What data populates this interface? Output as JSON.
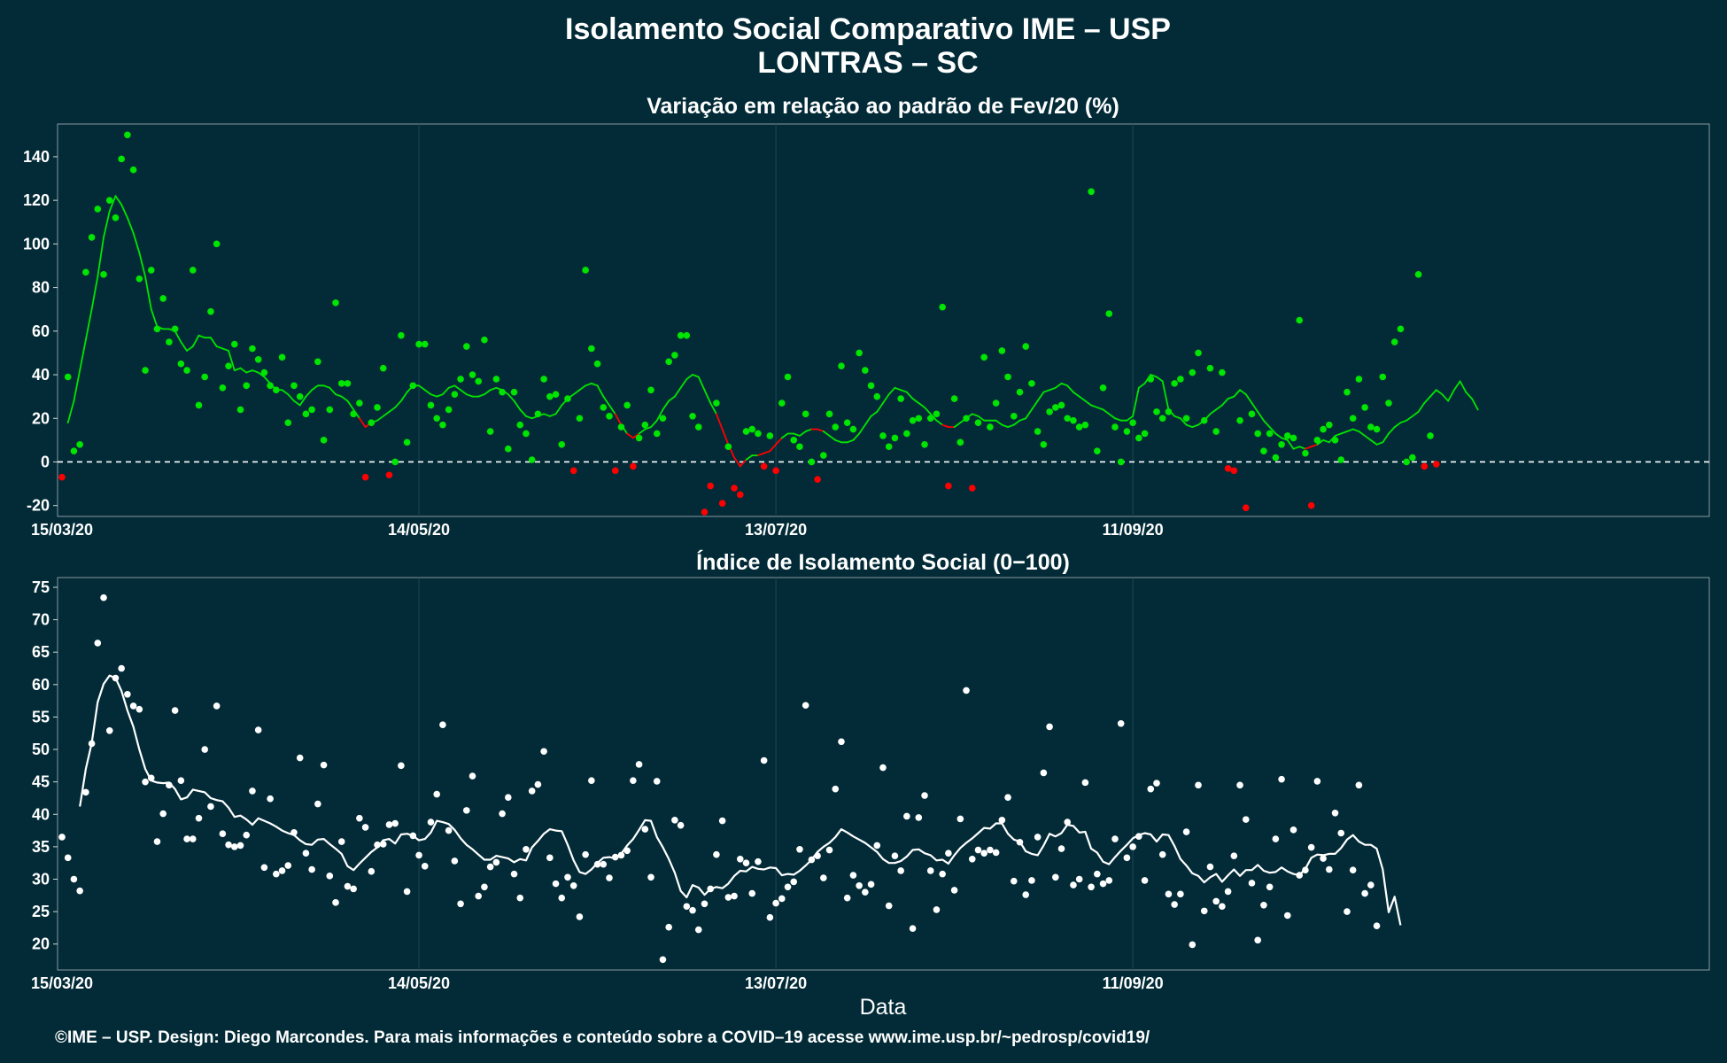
{
  "title_line1": "Isolamento Social Comparativo IME – USP",
  "title_line2": "LONTRAS – SC",
  "caption": "©IME – USP. Design: Diego Marcondes. Para mais informações e conteúdo sobre a COVID–19 acesse www.ime.usp.br/~pedrosp/covid19/",
  "colors": {
    "background": "#022b37",
    "positive": "#00e500",
    "negative": "#ff0000",
    "index": "#ffffff",
    "axis_text": "#ffffff"
  },
  "chart_data": [
    {
      "type": "scatter",
      "title": "Variação em relação ao padrão de Fev/20 (%)",
      "xlabel": "",
      "ylabel": "",
      "x_start": "15/03/20",
      "x_end": "16/12/20",
      "xticks": [
        "15/03/20",
        "14/05/20",
        "13/07/20",
        "11/09/20"
      ],
      "yticks": [
        -20,
        0,
        20,
        40,
        60,
        80,
        100,
        120,
        140
      ],
      "ylim": [
        -25,
        155
      ],
      "reference_line": 0,
      "grid": true,
      "series": [
        {
          "role": "daily points (green ≥ 0, red < 0)",
          "values": [
            -7,
            39,
            5,
            8,
            87,
            103,
            116,
            86,
            120,
            112,
            139,
            150,
            134,
            84,
            42,
            88,
            61,
            75,
            55,
            61,
            45,
            42,
            88,
            26,
            39,
            69,
            100,
            34,
            44,
            54,
            24,
            35,
            52,
            47,
            41,
            35,
            33,
            48,
            18,
            35,
            30,
            22,
            24,
            46,
            10,
            24,
            73,
            36,
            36,
            22,
            27,
            -7,
            18,
            25,
            43,
            -6,
            0,
            58,
            9,
            35,
            54,
            54,
            26,
            20,
            17,
            24,
            31,
            38,
            53,
            40,
            37,
            56,
            14,
            38,
            32,
            6,
            32,
            17,
            13,
            1,
            22,
            38,
            30,
            31,
            8,
            29,
            -4,
            20,
            88,
            52,
            45,
            25,
            21,
            -4,
            16,
            26,
            -2,
            11,
            17,
            33,
            13,
            20,
            46,
            49,
            58,
            58,
            21,
            16,
            -23,
            -11,
            27,
            -19,
            7,
            -12,
            -15,
            14,
            15,
            13,
            -2,
            12,
            -4,
            27,
            39,
            10,
            7,
            22,
            0,
            -8,
            3,
            22,
            16,
            44,
            18,
            15,
            50,
            42,
            35,
            30,
            12,
            7,
            11,
            29,
            13,
            19,
            20,
            8,
            20,
            22,
            71,
            -11,
            29,
            9,
            20,
            -12,
            18,
            48,
            16,
            27,
            51,
            39,
            21,
            32,
            53,
            36,
            14,
            8,
            23,
            25,
            26,
            20,
            19,
            16,
            17,
            124,
            5,
            34,
            68,
            16,
            0,
            14,
            18,
            11,
            13,
            38,
            23,
            20,
            23,
            36,
            38,
            20,
            41,
            50,
            19,
            43,
            14,
            41,
            -3,
            -4,
            19,
            -21,
            22,
            13,
            5,
            13,
            2,
            8,
            12,
            11,
            65,
            4,
            -20,
            10,
            15,
            17,
            10,
            1,
            32,
            20,
            38,
            25,
            16,
            15,
            39,
            27,
            55,
            61,
            0,
            2,
            86,
            -2,
            12,
            -1
          ]
        },
        {
          "role": "7-day moving average",
          "values": [
            18,
            28,
            42,
            56,
            70,
            85,
            103,
            115,
            122,
            118,
            112,
            105,
            96,
            85,
            70,
            62,
            61,
            61,
            60,
            55,
            51,
            53,
            58,
            57,
            57,
            53,
            52,
            51,
            42,
            43,
            41,
            42,
            41,
            39,
            36,
            33,
            33,
            31,
            28,
            26,
            30,
            33,
            35,
            35,
            34,
            31,
            30,
            28,
            24,
            20,
            16,
            18,
            19,
            21,
            23,
            25,
            28,
            32,
            35,
            35,
            33,
            31,
            30,
            31,
            34,
            35,
            33,
            31,
            30,
            30,
            31,
            33,
            34,
            33,
            31,
            28,
            24,
            21,
            20,
            21,
            22,
            21,
            22,
            26,
            29,
            31,
            33,
            35,
            36,
            35,
            30,
            26,
            22,
            17,
            13,
            11,
            13,
            15,
            16,
            19,
            24,
            28,
            30,
            34,
            38,
            40,
            39,
            33,
            27,
            22,
            15,
            8,
            2,
            -2,
            1,
            3,
            3,
            4,
            5,
            8,
            11,
            13,
            13,
            12,
            14,
            15,
            15,
            14,
            12,
            10,
            9,
            9,
            10,
            13,
            17,
            21,
            23,
            27,
            31,
            34,
            33,
            32,
            29,
            27,
            25,
            22,
            19,
            17,
            16,
            16,
            18,
            20,
            22,
            21,
            19,
            19,
            19,
            17,
            16,
            17,
            19,
            20,
            24,
            28,
            32,
            33,
            34,
            36,
            35,
            32,
            30,
            28,
            26,
            25,
            24,
            22,
            20,
            19,
            19,
            21,
            34,
            36,
            40,
            39,
            37,
            24,
            21,
            20,
            17,
            16,
            17,
            19,
            22,
            24,
            26,
            29,
            30,
            33,
            31,
            27,
            23,
            19,
            16,
            13,
            11,
            10,
            6,
            7,
            6,
            7,
            8,
            10,
            9,
            12,
            13,
            14,
            15,
            14,
            12,
            10,
            8,
            9,
            13,
            16,
            18,
            19,
            21,
            23,
            27,
            30,
            33,
            31,
            28,
            33,
            37,
            32,
            29,
            24
          ]
        }
      ]
    },
    {
      "type": "scatter",
      "title": "Índice de Isolamento Social (0−100)",
      "xlabel": "Data",
      "ylabel": "",
      "x_start": "15/03/20",
      "x_end": "16/12/20",
      "xticks": [
        "15/03/20",
        "14/05/20",
        "13/07/20",
        "11/09/20"
      ],
      "yticks": [
        20,
        25,
        30,
        35,
        40,
        45,
        50,
        55,
        60,
        65,
        70,
        75
      ],
      "ylim": [
        16,
        76.5
      ],
      "grid": true,
      "series": [
        {
          "role": "daily points",
          "values": [
            36.5,
            33.3,
            30.0,
            28.2,
            43.4,
            50.9,
            66.4,
            73.4,
            52.9,
            61.0,
            62.5,
            58.5,
            56.7,
            56.2,
            45.0,
            45.6,
            35.8,
            40.1,
            44.5,
            56.0,
            45.2,
            36.2,
            36.2,
            39.4,
            50.0,
            41.2,
            56.7,
            37.0,
            35.3,
            35.0,
            35.2,
            36.8,
            43.6,
            53.0,
            31.8,
            42.4,
            30.8,
            31.3,
            32.1,
            37.2,
            48.7,
            34.0,
            31.5,
            41.6,
            47.6,
            30.5,
            26.4,
            35.8,
            28.9,
            28.5,
            39.4,
            38.0,
            31.2,
            35.3,
            35.4,
            38.4,
            38.6,
            47.5,
            28.1,
            36.7,
            33.7,
            32.0,
            38.8,
            43.1,
            53.8,
            37.5,
            32.8,
            26.2,
            40.6,
            45.9,
            27.4,
            28.8,
            31.9,
            32.6,
            40.1,
            42.6,
            30.8,
            27.1,
            34.6,
            43.6,
            44.6,
            49.7,
            33.3,
            29.3,
            27.1,
            30.3,
            29.0,
            24.2,
            33.8,
            45.2,
            32.3,
            32.3,
            30.2,
            33.4,
            33.7,
            34.4,
            45.2,
            47.7,
            37.7,
            30.3,
            45.1,
            17.6,
            22.6,
            39.1,
            38.3,
            25.8,
            25.2,
            22.2,
            26.2,
            28.5,
            33.8,
            39.0,
            27.2,
            27.4,
            33.1,
            32.5,
            27.8,
            32.7,
            48.3,
            24.1,
            26.3,
            27.0,
            28.8,
            29.6,
            34.6,
            56.8,
            33.0,
            33.6,
            30.2,
            34.5,
            43.9,
            51.2,
            27.1,
            30.6,
            29.0,
            28.0,
            29.2,
            35.2,
            47.2,
            25.9,
            33.6,
            31.3,
            39.7,
            22.4,
            39.5,
            42.9,
            31.3,
            25.3,
            30.8,
            34.0,
            28.3,
            39.3,
            59.1,
            33.1,
            34.5,
            34.0,
            34.5,
            34.1,
            39.1,
            42.6,
            29.7,
            35.7,
            27.6,
            29.8,
            36.5,
            46.4,
            53.5,
            30.3,
            34.7,
            38.8,
            29.1,
            30.0,
            44.9,
            28.8,
            30.8,
            29.3,
            29.8,
            36.2,
            54.0,
            33.3,
            35.0,
            36.6,
            29.8,
            43.9,
            44.8,
            33.8,
            27.7,
            26.1,
            27.7,
            37.3,
            19.9,
            44.5,
            25.1,
            31.9,
            26.6,
            25.8,
            28.1,
            33.6,
            44.5,
            39.2,
            29.4,
            20.6,
            26.0,
            28.8,
            36.2,
            45.4,
            24.4,
            37.6,
            30.6,
            31.4,
            34.9,
            45.1,
            33.2,
            31.5,
            40.2,
            37.1,
            25.0,
            31.4,
            44.5,
            27.8,
            29.1,
            22.8
          ]
        },
        {
          "role": "7-day moving average",
          "values": [
            41.2,
            47.0,
            51.0,
            57.3,
            60.1,
            61.4,
            61.0,
            59.0,
            56.0,
            53.5,
            50.0,
            47.0,
            45.2,
            44.9,
            44.8,
            44.9,
            43.9,
            42.3,
            42.6,
            43.8,
            43.6,
            43.4,
            42.5,
            42.2,
            42.0,
            41.0,
            39.6,
            39.8,
            39.2,
            38.4,
            39.4,
            39.0,
            38.6,
            38.1,
            37.5,
            37.1,
            36.8,
            36.0,
            35.4,
            35.3,
            36.1,
            36.2,
            35.4,
            34.7,
            33.9,
            32.0,
            31.4,
            32.4,
            33.3,
            34.2,
            34.9,
            36.0,
            36.2,
            35.5,
            36.9,
            37.0,
            36.7,
            36.0,
            36.2,
            37.2,
            39.0,
            38.8,
            38.5,
            37.6,
            36.3,
            35.3,
            34.6,
            33.8,
            33.0,
            33.0,
            33.6,
            33.4,
            33.2,
            32.6,
            33.1,
            32.9,
            34.9,
            35.9,
            37.0,
            37.7,
            37.5,
            37.4,
            35.3,
            32.9,
            31.1,
            30.8,
            31.5,
            32.5,
            33.3,
            33.4,
            33.2,
            33.9,
            35.2,
            36.2,
            37.6,
            39.1,
            39.0,
            36.5,
            34.9,
            33.1,
            31.0,
            28.2,
            27.2,
            29.1,
            28.7,
            27.6,
            28.5,
            28.8,
            28.6,
            29.3,
            30.5,
            31.3,
            31.2,
            31.9,
            31.6,
            31.5,
            31.8,
            31.7,
            30.6,
            30.8,
            30.7,
            31.3,
            32.1,
            33.0,
            34.2,
            35.0,
            35.6,
            36.5,
            37.7,
            37.2,
            36.6,
            36.1,
            35.6,
            34.9,
            34.2,
            33.1,
            32.5,
            32.5,
            32.8,
            33.5,
            34.5,
            34.6,
            34.0,
            33.7,
            32.9,
            33.0,
            32.4,
            33.7,
            34.8,
            35.6,
            36.3,
            37.1,
            37.9,
            37.8,
            38.6,
            38.6,
            37.0,
            36.1,
            35.8,
            34.3,
            33.9,
            33.7,
            35.2,
            37.0,
            36.6,
            37.1,
            38.4,
            38.2,
            37.2,
            37.3,
            34.7,
            34.1,
            32.7,
            32.3,
            33.4,
            34.4,
            35.3,
            36.3,
            36.8,
            37.1,
            36.9,
            35.8,
            36.9,
            36.8,
            35.1,
            33.1,
            32.1,
            30.9,
            30.5,
            29.5,
            30.3,
            30.8,
            29.6,
            30.6,
            31.5,
            30.5,
            31.4,
            31.4,
            32.2,
            31.3,
            31.0,
            31.1,
            31.8,
            31.2,
            30.8,
            30.6,
            31.6,
            33.3,
            33.8,
            33.7,
            33.9,
            33.9,
            34.8,
            36.1,
            36.8,
            35.8,
            35.3,
            35.3,
            34.7,
            31.5,
            24.9,
            27.3,
            22.9
          ]
        }
      ]
    }
  ]
}
